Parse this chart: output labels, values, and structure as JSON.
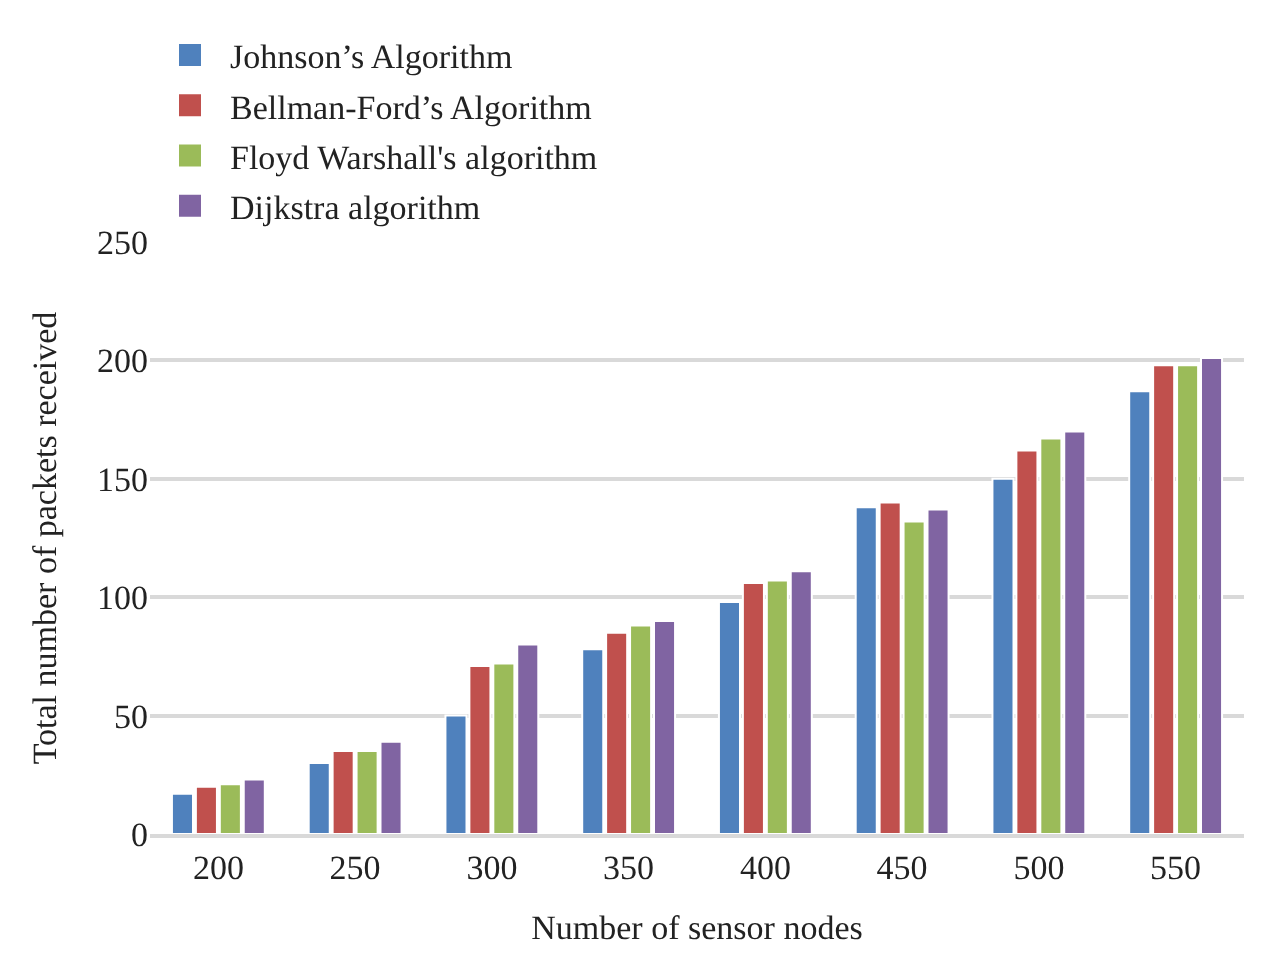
{
  "chart_data": {
    "type": "bar",
    "xlabel": "Number of sensor nodes",
    "ylabel": "Total number of packets received",
    "categories": [
      "200",
      "250",
      "300",
      "350",
      "400",
      "450",
      "500",
      "550"
    ],
    "series": [
      {
        "name": "Johnson’s Algorithm",
        "color": "#4f81bd",
        "values": [
          17,
          30,
          50,
          78,
          98,
          138,
          150,
          187
        ]
      },
      {
        "name": "Bellman-Ford’s Algorithm",
        "color": "#c0504d",
        "values": [
          20,
          35,
          71,
          85,
          106,
          140,
          162,
          198
        ]
      },
      {
        "name": "Floyd Warshall's algorithm",
        "color": "#9bbb59",
        "values": [
          21,
          35,
          72,
          88,
          107,
          132,
          167,
          198
        ]
      },
      {
        "name": "Dijkstra algorithm",
        "color": "#8064a2",
        "values": [
          23,
          39,
          80,
          90,
          111,
          137,
          170,
          201
        ]
      }
    ],
    "ylim": [
      0,
      250
    ],
    "yticks": [
      0,
      50,
      100,
      150,
      200,
      250
    ],
    "grid": "y",
    "legend": "top"
  }
}
